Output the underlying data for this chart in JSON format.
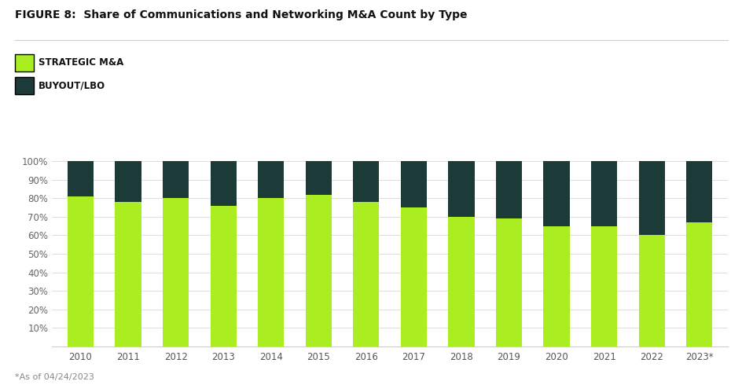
{
  "title": "FIGURE 8:  Share of Communications and Networking M&A Count by Type",
  "footnote": "*As of 04/24/2023",
  "years": [
    "2010",
    "2011",
    "2012",
    "2013",
    "2014",
    "2015",
    "2016",
    "2017",
    "2018",
    "2019",
    "2020",
    "2021",
    "2022",
    "2023*"
  ],
  "strategic_pct": [
    81,
    78,
    80,
    76,
    80,
    82,
    78,
    75,
    70,
    69,
    65,
    65,
    60,
    67
  ],
  "buyout_pct": [
    19,
    22,
    20,
    24,
    20,
    18,
    22,
    25,
    30,
    31,
    35,
    35,
    40,
    33
  ],
  "color_strategic": "#aaee22",
  "color_buyout": "#1b3a38",
  "ytick_labels": [
    "10%",
    "20%",
    "30%",
    "40%",
    "50%",
    "60%",
    "70%",
    "80%",
    "90%",
    "100%"
  ],
  "ytick_values": [
    10,
    20,
    30,
    40,
    50,
    60,
    70,
    80,
    90,
    100
  ],
  "legend_strategic": "STRATEGIC M&A",
  "legend_buyout": "BUYOUT/LBO",
  "background_color": "#ffffff",
  "bar_width": 0.55,
  "title_fontsize": 10,
  "legend_fontsize": 8.5,
  "tick_fontsize": 8.5,
  "footnote_fontsize": 8
}
